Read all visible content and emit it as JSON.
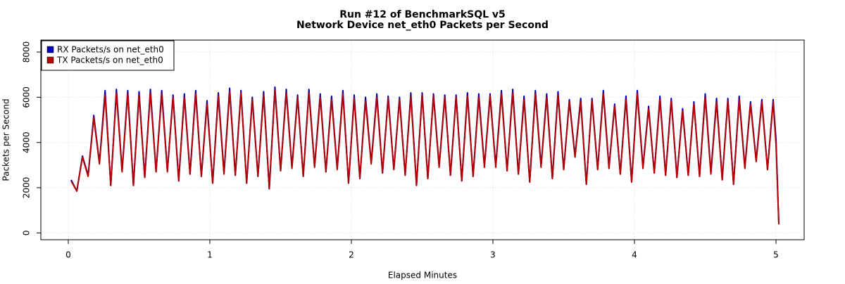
{
  "chart_data": {
    "type": "line",
    "title": "Run #12 of BenchmarkSQL v5",
    "subtitle": "Network Device net_eth0 Packets per Second",
    "x_label": "Elapsed Minutes",
    "y_label": "Packets per Second",
    "xlim": [
      -0.194,
      5.199
    ],
    "ylim": [
      -300,
      8530
    ],
    "xticks": [
      0,
      1,
      2,
      3,
      4,
      5
    ],
    "yticks": [
      0,
      2000,
      4000,
      6000,
      8000
    ],
    "grid": true,
    "legend": "top-left",
    "x": [
      0.02,
      0.06,
      0.1,
      0.14,
      0.18,
      0.22,
      0.26,
      0.3,
      0.34,
      0.38,
      0.42,
      0.46,
      0.5,
      0.54,
      0.58,
      0.62,
      0.66,
      0.7,
      0.74,
      0.78,
      0.82,
      0.86,
      0.9,
      0.94,
      0.98,
      1.02,
      1.06,
      1.1,
      1.14,
      1.18,
      1.22,
      1.26,
      1.3,
      1.34,
      1.38,
      1.42,
      1.46,
      1.5,
      1.54,
      1.58,
      1.62,
      1.66,
      1.7,
      1.74,
      1.78,
      1.82,
      1.86,
      1.9,
      1.94,
      1.98,
      2.02,
      2.06,
      2.1,
      2.14,
      2.18,
      2.22,
      2.26,
      2.3,
      2.34,
      2.38,
      2.42,
      2.46,
      2.5,
      2.54,
      2.58,
      2.62,
      2.66,
      2.7,
      2.74,
      2.78,
      2.82,
      2.86,
      2.9,
      2.94,
      2.98,
      3.02,
      3.06,
      3.1,
      3.14,
      3.18,
      3.22,
      3.26,
      3.3,
      3.34,
      3.38,
      3.42,
      3.46,
      3.5,
      3.54,
      3.58,
      3.62,
      3.66,
      3.7,
      3.74,
      3.78,
      3.82,
      3.86,
      3.9,
      3.94,
      3.98,
      4.02,
      4.06,
      4.1,
      4.14,
      4.18,
      4.22,
      4.26,
      4.3,
      4.34,
      4.38,
      4.42,
      4.46,
      4.5,
      4.54,
      4.58,
      4.62,
      4.66,
      4.7,
      4.74,
      4.78,
      4.82,
      4.86,
      4.9,
      4.94,
      4.98,
      5.0,
      5.02
    ],
    "series": [
      {
        "name": "RX Packets/s on net_eth0",
        "color": "#0000b4",
        "values": [
          2350,
          1850,
          3400,
          2550,
          5200,
          3100,
          6300,
          2100,
          6350,
          2750,
          6300,
          2100,
          6250,
          2450,
          6350,
          2700,
          6300,
          2750,
          6100,
          2300,
          6150,
          2600,
          6300,
          2500,
          5850,
          2200,
          6200,
          2650,
          6400,
          2550,
          6300,
          2200,
          6000,
          2500,
          6250,
          1950,
          6450,
          2750,
          6350,
          2900,
          6100,
          2500,
          6350,
          2950,
          6150,
          2700,
          6050,
          2850,
          6300,
          2200,
          6100,
          2400,
          6000,
          3100,
          6150,
          2650,
          6050,
          2800,
          6000,
          2550,
          6200,
          2100,
          6200,
          2400,
          6150,
          2950,
          6100,
          2550,
          6100,
          2300,
          6200,
          2500,
          6150,
          2950,
          6150,
          2950,
          6300,
          2750,
          6350,
          2600,
          6050,
          2250,
          6300,
          2950,
          6150,
          2400,
          6250,
          2800,
          5900,
          3400,
          5950,
          2150,
          5950,
          2800,
          6300,
          2900,
          5700,
          2600,
          6050,
          2250,
          6300,
          2900,
          5600,
          2650,
          6050,
          2550,
          5950,
          2450,
          5500,
          2550,
          5800,
          2500,
          6150,
          2650,
          5950,
          2350,
          5950,
          2150,
          6050,
          2900,
          5800,
          3200,
          5900,
          2800,
          5900,
          4150,
          380
        ]
      },
      {
        "name": "TX Packets/s on net_eth0",
        "color": "#b40000",
        "values": [
          2300,
          1850,
          3350,
          2500,
          5100,
          3050,
          6100,
          2100,
          6200,
          2700,
          6150,
          2100,
          6100,
          2450,
          6200,
          2700,
          6150,
          2700,
          6000,
          2300,
          6000,
          2600,
          6150,
          2500,
          5700,
          2200,
          6050,
          2600,
          6250,
          2550,
          6200,
          2200,
          5900,
          2500,
          6100,
          1950,
          6300,
          2750,
          6200,
          2850,
          6000,
          2500,
          6200,
          2900,
          6000,
          2700,
          5900,
          2800,
          6150,
          2200,
          5950,
          2400,
          5850,
          3050,
          6000,
          2650,
          5950,
          2800,
          5900,
          2550,
          6050,
          2100,
          6100,
          2400,
          6050,
          2900,
          6000,
          2550,
          6000,
          2300,
          6050,
          2500,
          6000,
          2900,
          6050,
          2900,
          6150,
          2750,
          6200,
          2600,
          5900,
          2250,
          6150,
          2900,
          6000,
          2400,
          6100,
          2800,
          5800,
          3350,
          5800,
          2150,
          5850,
          2800,
          6150,
          2850,
          5600,
          2600,
          5900,
          2250,
          6150,
          2850,
          5500,
          2650,
          5900,
          2550,
          5850,
          2450,
          5400,
          2550,
          5700,
          2500,
          6000,
          2600,
          5800,
          2350,
          5850,
          2150,
          5900,
          2850,
          5700,
          3150,
          5800,
          2800,
          5800,
          3900,
          380
        ]
      }
    ]
  }
}
